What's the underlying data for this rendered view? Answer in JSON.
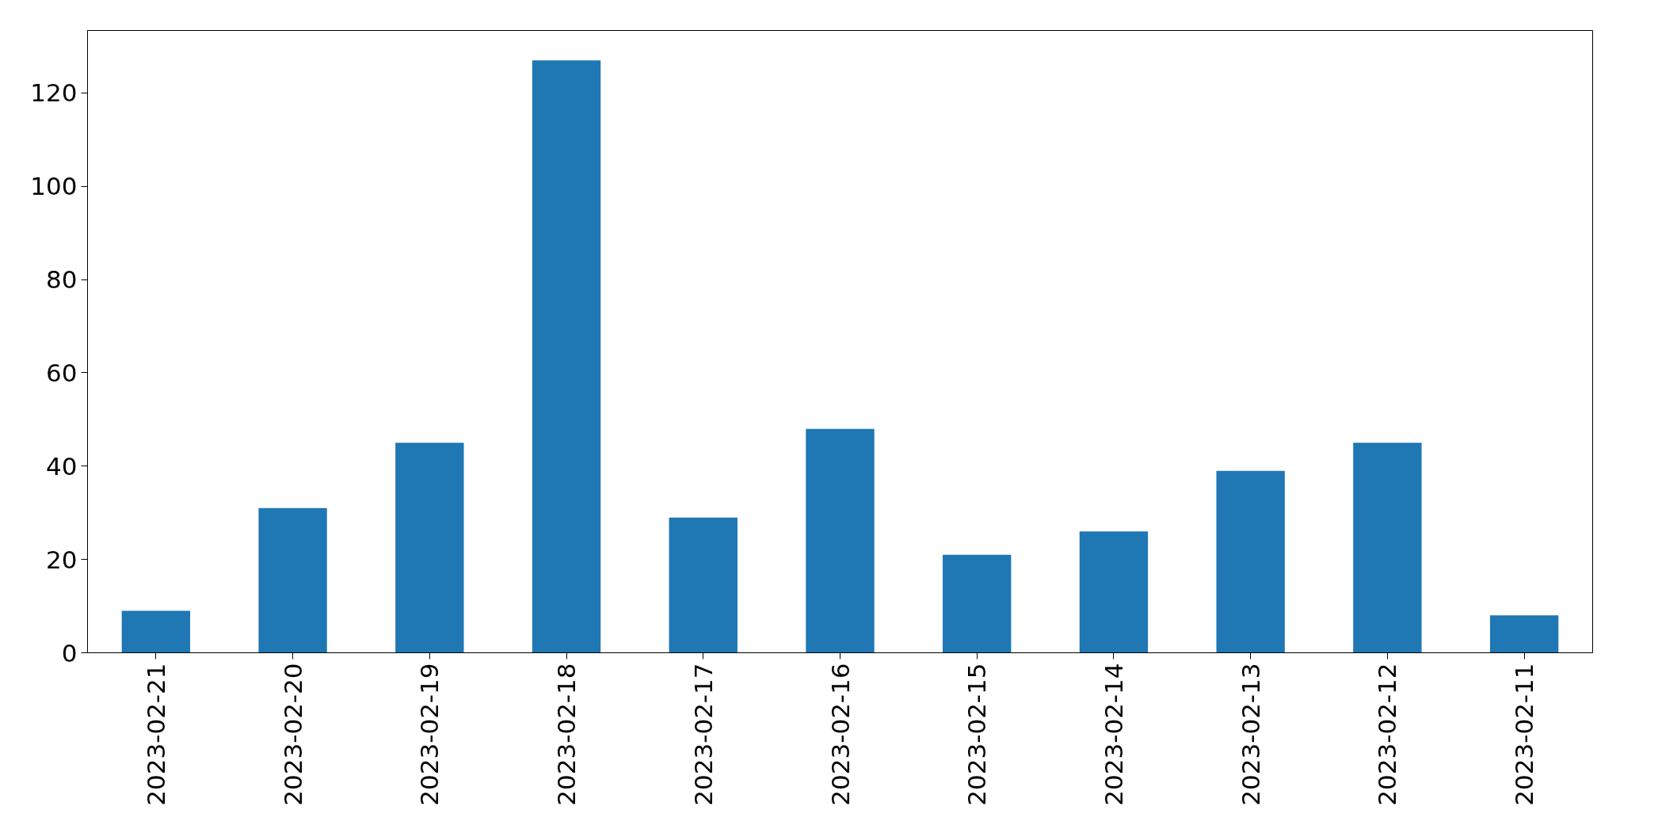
{
  "chart_data": {
    "type": "bar",
    "categories": [
      "2023-02-21",
      "2023-02-20",
      "2023-02-19",
      "2023-02-18",
      "2023-02-17",
      "2023-02-16",
      "2023-02-15",
      "2023-02-14",
      "2023-02-13",
      "2023-02-12",
      "2023-02-11"
    ],
    "values": [
      9,
      31,
      45,
      127,
      29,
      48,
      21,
      26,
      39,
      45,
      8
    ],
    "color": "#1f77b4",
    "ylim": [
      0,
      133.4
    ],
    "yticks": [
      0,
      20,
      40,
      60,
      80,
      100,
      120
    ],
    "grid": false
  }
}
